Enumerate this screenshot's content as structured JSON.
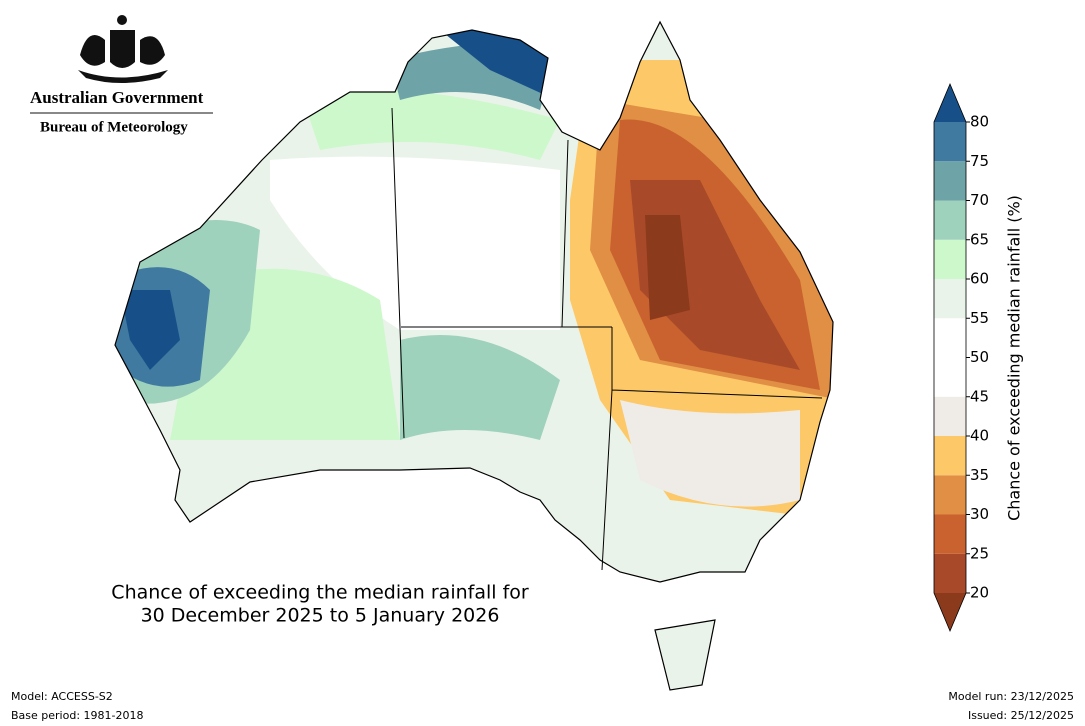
{
  "header": {
    "government": "Australian Government",
    "agency": "Bureau of Meteorology"
  },
  "map": {
    "title_lines": [
      "Chance of exceeding the median rainfall for",
      "30 December 2025 to 5 January 2026"
    ]
  },
  "colorbar": {
    "label": "Chance of exceeding median rainfall (%)",
    "ticks": [
      20,
      25,
      30,
      35,
      40,
      45,
      50,
      55,
      60,
      65,
      70,
      75,
      80
    ],
    "colors": [
      "#8c3a1c",
      "#a84a2a",
      "#c9622f",
      "#e08f44",
      "#fdc867",
      "#efebe7",
      "#ffffff",
      "#ffffff",
      "#eaf3ea",
      "#ccf8cc",
      "#9ed2bd",
      "#6ea3a8",
      "#417aa0",
      "#175088"
    ]
  },
  "footer": {
    "model": "Model: ACCESS-S2",
    "base_period": "Base period: 1981-2018",
    "model_run": "Model run: 23/12/2025",
    "issued": "Issued: 25/12/2025"
  }
}
